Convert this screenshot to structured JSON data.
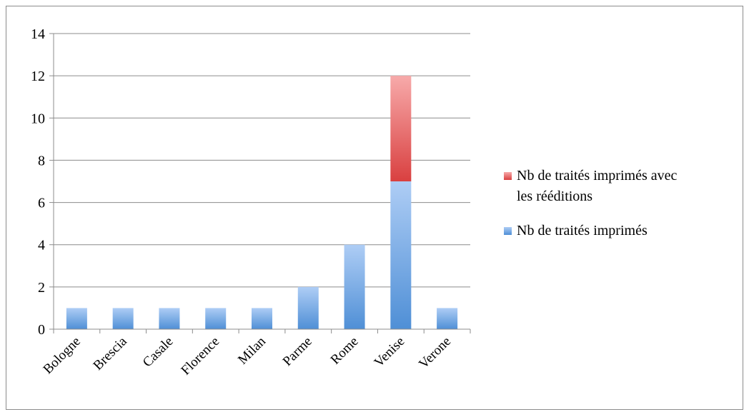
{
  "chart_data": {
    "type": "bar",
    "stacked": true,
    "categories": [
      "Bologne",
      "Brescia",
      "Casale",
      "Florence",
      "Milan",
      "Parme",
      "Rome",
      "Venise",
      "Verone"
    ],
    "series": [
      {
        "name": "Nb de traités imprimés",
        "values": [
          1,
          1,
          1,
          1,
          1,
          2,
          4,
          7,
          1
        ],
        "color": "#5b9bd5"
      },
      {
        "name": "Nb de traités imprimés avec les rééditions",
        "values": [
          0,
          0,
          0,
          0,
          0,
          0,
          0,
          5,
          0
        ],
        "color": "#e04848"
      }
    ],
    "ylim": [
      0,
      14
    ],
    "yticks": [
      0,
      2,
      4,
      6,
      8,
      10,
      12,
      14
    ],
    "grid": true,
    "legend_position": "right",
    "legend_order": [
      1,
      0
    ]
  }
}
